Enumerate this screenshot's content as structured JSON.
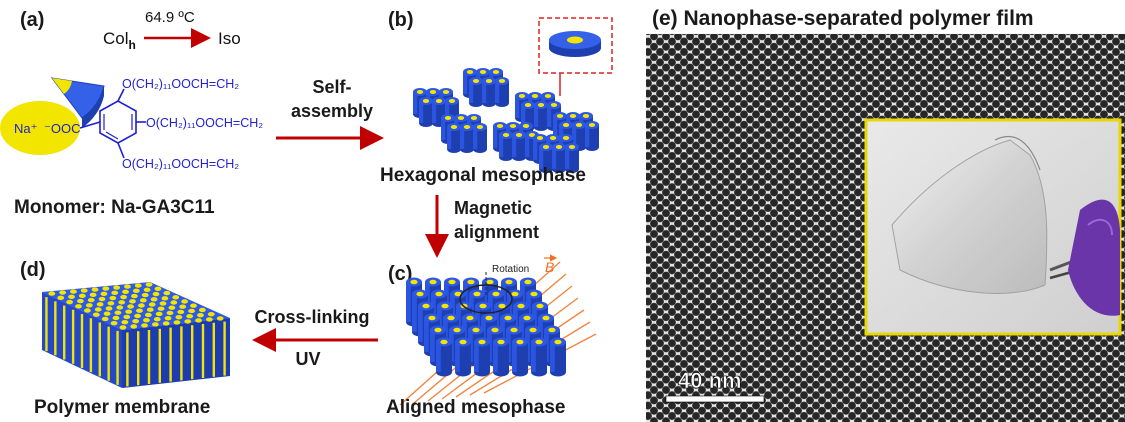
{
  "panel_a": {
    "label": "(a)",
    "phase_from": "Col",
    "phase_from_sub": "h",
    "temperature": "64.9 ºC",
    "phase_to": "Iso",
    "chain_top": "O(CH₂)₁₁OOCH=CH₂",
    "chain_mid": "O(CH₂)₁₁OOCH=CH₂",
    "chain_bot": "O(CH₂)₁₁OOCH=CH₂",
    "head_ion": "Na⁺",
    "head_group": "⁻OOC",
    "caption": "Monomer: Na-GA3C11"
  },
  "step_self_assembly": {
    "line1": "Self-",
    "line2": "assembly"
  },
  "panel_b": {
    "label": "(b)",
    "caption": "Hexagonal mesophase"
  },
  "step_magnetic": {
    "line1": "Magnetic",
    "line2": "alignment"
  },
  "panel_c": {
    "label": "(c)",
    "rotation": "Rotation",
    "field": "B",
    "caption": "Aligned mesophase"
  },
  "step_crosslink": {
    "line1": "Cross-linking",
    "line2": "UV"
  },
  "panel_d": {
    "label": "(d)",
    "caption": "Polymer membrane"
  },
  "panel_e": {
    "title": "(e) Nanophase-separated polymer film",
    "scale_bar": "40 nm"
  },
  "colors": {
    "column_blue": "#2d57e6",
    "core_yellow": "#f2e600",
    "arrow_red": "#c00000",
    "chem_blue": "#1f1fd0",
    "inset_border": "#e8d800"
  }
}
